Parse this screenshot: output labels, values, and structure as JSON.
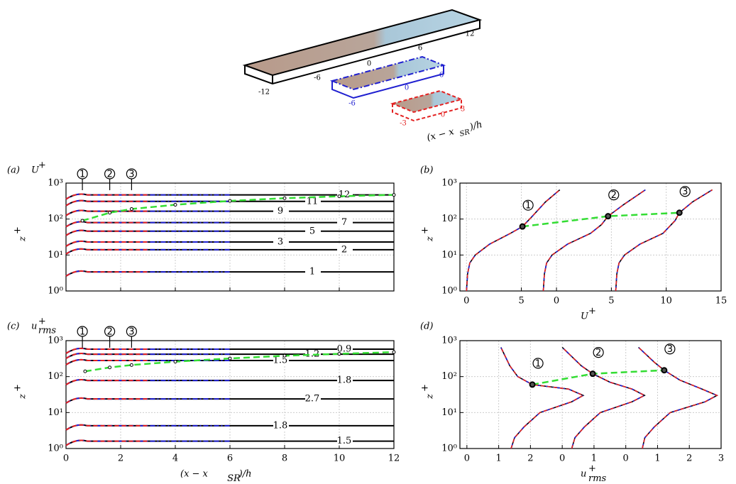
{
  "schematic": {
    "black_ticks": [
      "-12",
      "-6",
      "0",
      "6",
      "12"
    ],
    "blue_ticks": [
      "-6",
      "0",
      "6"
    ],
    "red_ticks": [
      "-3",
      "0",
      "3"
    ],
    "axis_label": {
      "main": "(x − x",
      "sub": "SR",
      "tail": ")/h"
    }
  },
  "chart_data": [
    {
      "type": "contour",
      "panel": "(a)",
      "variable": {
        "base": "U",
        "sup": "+"
      },
      "xlim": [
        0,
        12
      ],
      "xgrid": [
        0,
        2,
        4,
        6,
        8,
        10,
        12
      ],
      "ylim": [
        1,
        1000
      ],
      "log_y": true,
      "grid": true,
      "yticks": [
        {
          "value": 1,
          "label": "10⁰"
        },
        {
          "value": 10,
          "label": "10¹"
        },
        {
          "value": 100,
          "label": "10²"
        },
        {
          "value": 1000,
          "label": "10³"
        }
      ],
      "ylabel": {
        "base": "z",
        "sup": "+"
      },
      "domains": [
        {
          "color": "#000000",
          "xlim": [
            0,
            12
          ]
        },
        {
          "color": "#1f1fd0",
          "xlim": [
            0,
            6
          ]
        },
        {
          "color": "#e32222",
          "xlim": [
            0,
            3
          ]
        }
      ],
      "contours": [
        {
          "level": 12,
          "z": 470
        },
        {
          "level": 11,
          "z": 310
        },
        {
          "level": 9,
          "z": 165
        },
        {
          "level": 7,
          "z": 80
        },
        {
          "level": 5,
          "z": 46
        },
        {
          "level": 3,
          "z": 23
        },
        {
          "level": 2,
          "z": 14
        },
        {
          "level": 1,
          "z": 3.4
        }
      ],
      "stations": {
        "x": [
          0.6,
          1.6,
          2.4
        ],
        "labels": [
          "1",
          "2",
          "3"
        ]
      },
      "markers": {
        "color": "#33dd33",
        "x": [
          0.6,
          1.6,
          2.4,
          4,
          6,
          8,
          10,
          12
        ],
        "z": [
          90,
          150,
          190,
          250,
          320,
          380,
          430,
          470
        ]
      }
    },
    {
      "type": "profile",
      "panel": "(b)",
      "xlim": [
        -0.6,
        23.2
      ],
      "xticks": [
        {
          "value": 0,
          "label": "0"
        },
        {
          "value": 5,
          "label": "5"
        },
        {
          "value": 8.2,
          "label": "0"
        },
        {
          "value": 13.2,
          "label": "5"
        },
        {
          "value": 18.2,
          "label": "10"
        },
        {
          "value": 23.2,
          "label": "15"
        }
      ],
      "xlabel": {
        "base": "U",
        "sup": "+"
      },
      "ylim": [
        1,
        1000
      ],
      "log_y": true,
      "grid": true,
      "yticks": [
        {
          "value": 1,
          "label": "10⁰"
        },
        {
          "value": 10,
          "label": "10¹"
        },
        {
          "value": 100,
          "label": "10²"
        },
        {
          "value": 1000,
          "label": "10³"
        }
      ],
      "ylabel": {
        "base": "z",
        "sup": "+"
      },
      "colors": [
        "#000000",
        "#1f1fd0",
        "#e32222"
      ],
      "profiles": [
        {
          "x": [
            0,
            0.1,
            0.3,
            0.8,
            2.1,
            4.0,
            5.1,
            6.0,
            7.2,
            8.5
          ],
          "z": [
            1,
            3,
            6,
            10,
            20,
            40,
            62,
            120,
            300,
            650
          ]
        },
        {
          "x": [
            7,
            7.1,
            7.3,
            7.8,
            9.2,
            11.3,
            12.3,
            12.9,
            14.3,
            16.3
          ],
          "z": [
            1,
            3,
            6,
            10,
            20,
            40,
            70,
            120,
            250,
            650
          ]
        },
        {
          "x": [
            13.6,
            13.7,
            13.9,
            14.4,
            15.8,
            17.9,
            19.0,
            19.4,
            20.6,
            22.4
          ],
          "z": [
            1,
            3,
            6,
            10,
            20,
            40,
            90,
            150,
            300,
            650
          ]
        }
      ],
      "stations": {
        "labels": [
          "1",
          "2",
          "3"
        ]
      },
      "markers": {
        "color": "#33dd33",
        "x": [
          5.1,
          12.9,
          19.4
        ],
        "z": [
          62,
          120,
          150
        ]
      }
    },
    {
      "type": "contour",
      "panel": "(c)",
      "variable": {
        "base": "u",
        "sup": "+",
        "sub": "rms"
      },
      "xlim": [
        0,
        12
      ],
      "xticks": [
        0,
        2,
        4,
        6,
        8,
        10,
        12
      ],
      "xlabel": {
        "base": "(x − x",
        "sub": "SR",
        "tail": ")/h"
      },
      "ylim": [
        1,
        1000
      ],
      "log_y": true,
      "grid": true,
      "yticks": [
        {
          "value": 1,
          "label": "10⁰"
        },
        {
          "value": 10,
          "label": "10¹"
        },
        {
          "value": 100,
          "label": "10²"
        },
        {
          "value": 1000,
          "label": "10³"
        }
      ],
      "ylabel": {
        "base": "z",
        "sup": "+"
      },
      "domains": [
        {
          "color": "#000000",
          "xlim": [
            0,
            12
          ]
        },
        {
          "color": "#1f1fd0",
          "xlim": [
            0,
            6
          ]
        },
        {
          "color": "#e32222",
          "xlim": [
            0,
            3
          ]
        }
      ],
      "contours": [
        {
          "level": 0.9,
          "z": 580
        },
        {
          "level": 1.2,
          "z": 420
        },
        {
          "level": 1.5,
          "z": 280
        },
        {
          "level": 1.8,
          "z": 78
        },
        {
          "level": 2.7,
          "z": 24
        },
        {
          "level": 1.8,
          "z": 4.3
        },
        {
          "level": 1.5,
          "z": 1.6
        }
      ],
      "stations": {
        "x": [
          0.6,
          1.6,
          2.4
        ],
        "labels": [
          "1",
          "2",
          "3"
        ]
      },
      "markers": {
        "color": "#33dd33",
        "x": [
          0.7,
          1.6,
          2.4,
          4,
          6,
          8,
          10,
          12
        ],
        "z": [
          140,
          180,
          210,
          260,
          320,
          380,
          430,
          480
        ]
      }
    },
    {
      "type": "profile",
      "panel": "(d)",
      "xlim": [
        -0.22,
        8
      ],
      "xticks": [
        {
          "value": 0,
          "label": "0"
        },
        {
          "value": 1,
          "label": "1"
        },
        {
          "value": 2,
          "label": "2"
        },
        {
          "value": 3,
          "label": "0"
        },
        {
          "value": 4,
          "label": "1"
        },
        {
          "value": 5,
          "label": "0"
        },
        {
          "value": 6,
          "label": "1"
        },
        {
          "value": 7,
          "label": "2"
        },
        {
          "value": 8,
          "label": "3"
        }
      ],
      "xlabel": {
        "base": "u",
        "sup": "+",
        "sub": "rms"
      },
      "ylim": [
        1,
        1000
      ],
      "log_y": true,
      "grid": true,
      "yticks": [
        {
          "value": 1,
          "label": "10⁰"
        },
        {
          "value": 10,
          "label": "10¹"
        },
        {
          "value": 100,
          "label": "10²"
        },
        {
          "value": 1000,
          "label": "10³"
        }
      ],
      "ylabel": {
        "base": "z",
        "sup": "+"
      },
      "colors": [
        "#000000",
        "#1f1fd0",
        "#e32222"
      ],
      "profiles": [
        {
          "x": [
            1.39,
            1.5,
            1.8,
            2.3,
            3.3,
            3.66,
            3.2,
            2.06,
            1.6,
            1.35,
            1.07
          ],
          "z": [
            1,
            2,
            4,
            10,
            20,
            30,
            45,
            60,
            100,
            200,
            650
          ]
        },
        {
          "x": [
            3.3,
            3.4,
            3.7,
            4.2,
            5.2,
            5.59,
            5.2,
            4.5,
            3.96,
            3.6,
            3.0
          ],
          "z": [
            1,
            2,
            4,
            10,
            20,
            30,
            45,
            70,
            120,
            200,
            650
          ]
        },
        {
          "x": [
            5.52,
            5.6,
            5.9,
            6.4,
            7.5,
            7.87,
            7.4,
            6.7,
            6.21,
            5.9,
            5.4
          ],
          "z": [
            1,
            2,
            4,
            10,
            20,
            30,
            45,
            80,
            150,
            250,
            650
          ]
        }
      ],
      "stations": {
        "labels": [
          "1",
          "2",
          "3"
        ]
      },
      "markers": {
        "color": "#33dd33",
        "x": [
          2.06,
          3.96,
          6.21
        ],
        "z": [
          60,
          120,
          150
        ]
      }
    }
  ]
}
